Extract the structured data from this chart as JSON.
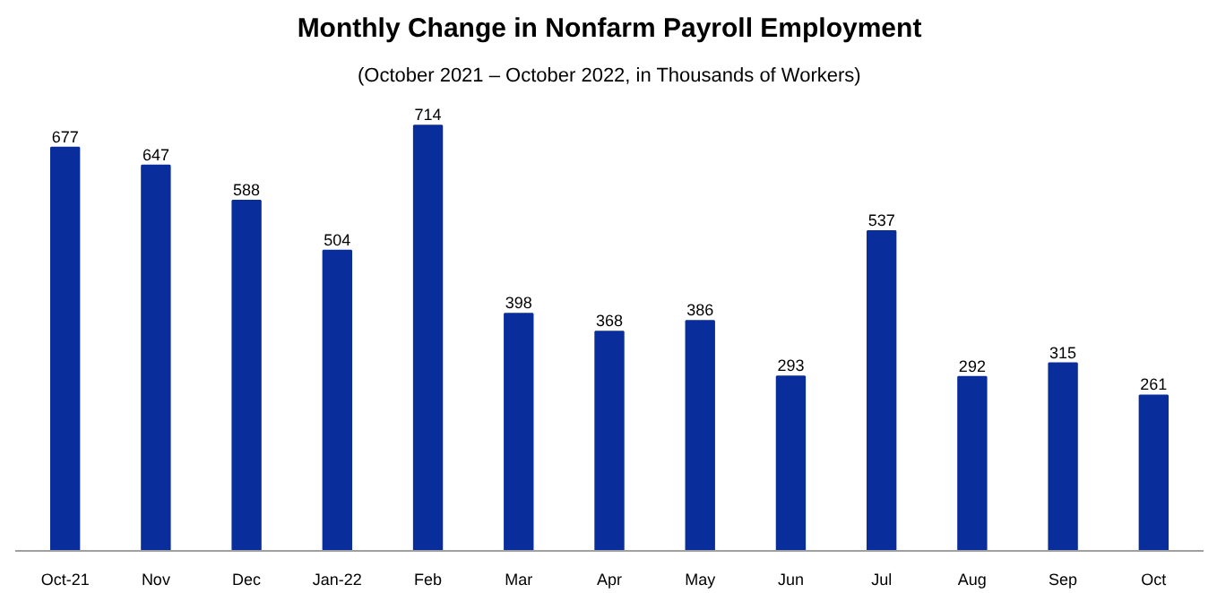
{
  "chart_data": {
    "type": "bar",
    "title": "Monthly Change in Nonfarm Payroll Employment",
    "subtitle": "(October 2021 – October 2022, in Thousands of Workers)",
    "categories": [
      "Oct-21",
      "Nov",
      "Dec",
      "Jan-22",
      "Feb",
      "Mar",
      "Apr",
      "May",
      "Jun",
      "Jul",
      "Aug",
      "Sep",
      "Oct"
    ],
    "values": [
      677,
      647,
      588,
      504,
      714,
      398,
      368,
      386,
      293,
      537,
      292,
      315,
      261
    ],
    "color": "#0a2d9c",
    "data_labels": true,
    "grid": false
  }
}
